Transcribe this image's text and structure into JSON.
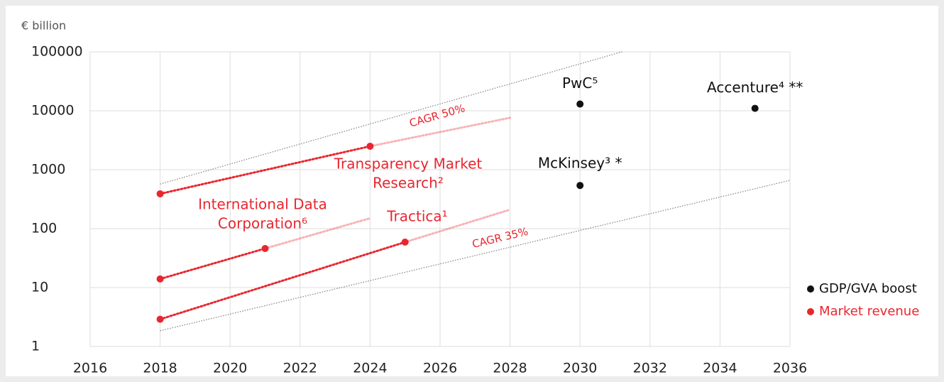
{
  "chart_data": {
    "type": "scatter",
    "ylabel": "€ billion",
    "log_scale": true,
    "grid": true,
    "legend": "right",
    "xlim": [
      2016,
      2036
    ],
    "ylim": [
      1,
      100000
    ],
    "xticks": [
      2016,
      2018,
      2020,
      2022,
      2024,
      2026,
      2028,
      2030,
      2032,
      2034,
      2036
    ],
    "yticks": [
      1,
      10,
      100,
      1000,
      10000,
      100000
    ],
    "series": [
      {
        "name": "GDP/GVA boost",
        "color": "#111111",
        "x": [
          2030,
          2030,
          2035
        ],
        "values": [
          13000,
          540,
          11000
        ],
        "point_labels": [
          "PwC⁵",
          "McKinsey³ *",
          "Accenture⁴ **"
        ]
      },
      {
        "name": "Market revenue",
        "color": "#e8262f",
        "forecasts": [
          {
            "label": [
              "Transparency Market",
              "Research²"
            ],
            "x": [
              2018,
              2024,
              2028
            ],
            "values": [
              390,
              2500,
              7600
            ]
          },
          {
            "label": [
              "International Data",
              "Corporation⁶"
            ],
            "x": [
              2018,
              2021,
              2024
            ],
            "values": [
              14,
              46,
              150
            ]
          },
          {
            "label": [
              "Tractica¹"
            ],
            "x": [
              2018,
              2025,
              2028
            ],
            "values": [
              2.9,
              59,
              210
            ]
          }
        ]
      }
    ],
    "trend_lines": [
      {
        "label": "CAGR 50%",
        "color": "#888888",
        "x": [
          2018,
          2031.2
        ],
        "values": [
          570,
          100000
        ]
      },
      {
        "label": "CAGR 35%",
        "color": "#888888",
        "x": [
          2018,
          2036
        ],
        "values": [
          1.85,
          660
        ]
      }
    ]
  }
}
